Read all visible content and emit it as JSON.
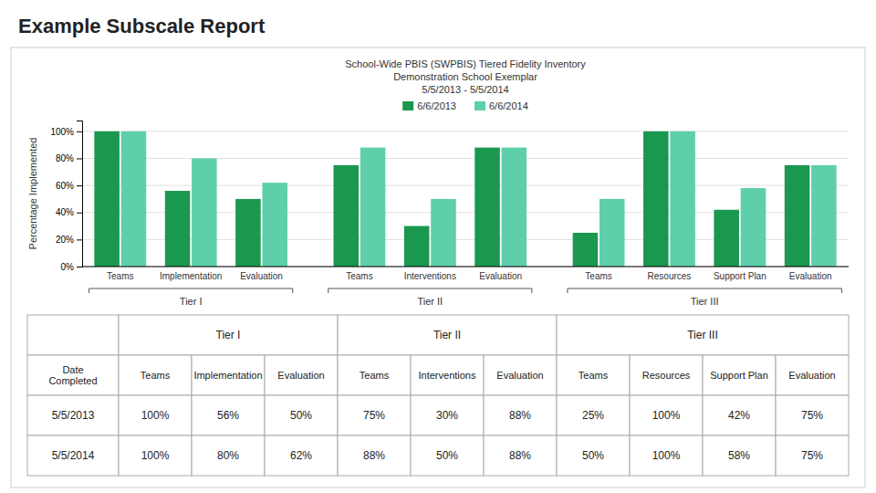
{
  "chart_data": {
    "type": "bar",
    "title": "Example Subscale Report",
    "subtitle": [
      "School-Wide PBIS (SWPBIS) Tiered Fidelity Inventory",
      "Demonstration School Exemplar",
      "5/5/2013 - 5/5/2014"
    ],
    "y_label": "Percentage Implemented",
    "categories": [
      "Teams",
      "Implementation",
      "Evaluation",
      "Teams",
      "Interventions",
      "Evaluation",
      "Teams",
      "Resources",
      "Support Plan",
      "Evaluation"
    ],
    "category_groups": [
      "Tier I",
      "Tier I",
      "Tier I",
      "Tier II",
      "Tier II",
      "Tier II",
      "Tier III",
      "Tier III",
      "Tier III",
      "Tier III"
    ],
    "series": [
      {
        "name": "6/6/2013",
        "color": "#1a9850",
        "values": [
          100,
          56,
          50,
          75,
          30,
          88,
          25,
          100,
          42,
          75
        ]
      },
      {
        "name": "6/6/2014",
        "color": "#5ecfaa",
        "values": [
          100,
          80,
          62,
          88,
          50,
          88,
          50,
          100,
          58,
          75
        ]
      }
    ],
    "ylim": [
      0,
      108
    ],
    "yticks": [
      {
        "value": 0,
        "label": "0%"
      },
      {
        "value": 20,
        "label": "20%"
      },
      {
        "value": 40,
        "label": "40%"
      },
      {
        "value": 60,
        "label": "60%"
      },
      {
        "value": 80,
        "label": "80%"
      },
      {
        "value": 100,
        "label": "100%"
      }
    ],
    "grid": true,
    "legend": "top",
    "table": {
      "columns": [
        "Date\nCompleted",
        "Teams",
        "Implementation",
        "Evaluation",
        "Teams",
        "Interventions",
        "Evaluation",
        "Teams",
        "Resources",
        "Support Plan",
        "Evaluation"
      ],
      "rows": [
        [
          "5/5/2013",
          "100%",
          "56%",
          "50%",
          "75%",
          "30%",
          "88%",
          "25%",
          "100%",
          "42%",
          "75%"
        ],
        [
          "5/5/2014",
          "100%",
          "80%",
          "62%",
          "88%",
          "50%",
          "88%",
          "50%",
          "100%",
          "58%",
          "75%"
        ]
      ]
    }
  }
}
